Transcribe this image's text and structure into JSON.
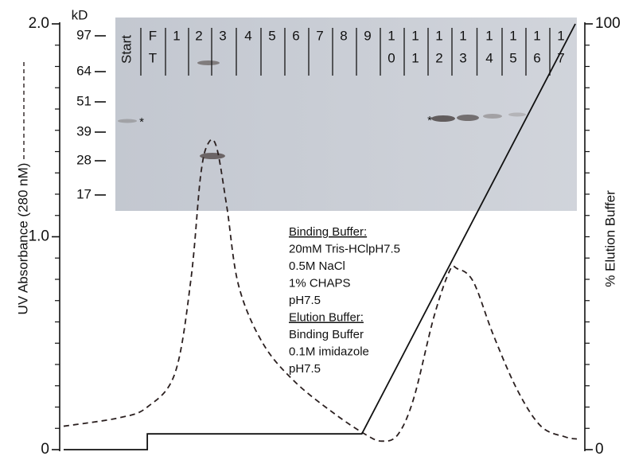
{
  "chart_data": {
    "type": "line",
    "ylabel": "UV Absorbance (280 nM)",
    "y2label": "% Elution Buffer",
    "xlim": [
      0,
      100
    ],
    "ylim": [
      0,
      2
    ],
    "yticks": [
      {
        "value": 0,
        "label": "0"
      },
      {
        "value": 1,
        "label": "1.0"
      },
      {
        "value": 2,
        "label": "2.0"
      }
    ],
    "yminorticks": [
      0.1,
      0.2,
      0.3,
      0.4,
      0.5,
      0.6,
      0.7,
      0.8,
      0.9,
      1.1,
      1.2,
      1.3,
      1.4,
      1.5,
      1.6,
      1.7,
      1.8,
      1.9
    ],
    "y2lim": [
      0,
      100
    ],
    "y2ticks": [
      0,
      100
    ],
    "y2minorticks": [
      5,
      10,
      15,
      20,
      25,
      30,
      35,
      40,
      45,
      50,
      55,
      60,
      65,
      70,
      75,
      80,
      85,
      90,
      95
    ],
    "series": [
      {
        "color": "#2a1f1f",
        "dashed": true,
        "x": [
          0,
          10.9,
          16.3,
          21.7,
          24.8,
          26.7,
          28.2,
          29.8,
          31.8,
          34.1,
          38.8,
          45,
          52.7,
          58.9,
          62,
          65.1,
          68.2,
          72.1,
          75.2,
          76.7,
          79.8,
          83.7,
          88.4,
          93,
          97.7,
          100
        ],
        "values": [
          0.11,
          0.15,
          0.2,
          0.36,
          0.8,
          1.29,
          1.44,
          1.42,
          1.14,
          0.77,
          0.5,
          0.32,
          0.17,
          0.07,
          0.04,
          0.07,
          0.24,
          0.62,
          0.84,
          0.85,
          0.79,
          0.54,
          0.28,
          0.11,
          0.06,
          0.05
        ]
      },
      {
        "color": "#111111",
        "dashed": false,
        "axis": "y2",
        "x": [
          0,
          16.3,
          16.3,
          58.1,
          99.7
        ],
        "values": [
          0,
          0,
          3.7,
          3.7,
          100
        ]
      }
    ],
    "gel": {
      "unit": "kD",
      "markers": [
        "97",
        "64",
        "51",
        "39",
        "28",
        "17"
      ],
      "lanes": [
        [
          "Start"
        ],
        [
          "F",
          "T"
        ],
        [
          "1"
        ],
        [
          "2"
        ],
        [
          "3"
        ],
        [
          "4"
        ],
        [
          "5"
        ],
        [
          "6"
        ],
        [
          "7"
        ],
        [
          "8"
        ],
        [
          "9"
        ],
        [
          "1",
          "0"
        ],
        [
          "1",
          "1"
        ],
        [
          "1",
          "2"
        ],
        [
          "1",
          "3"
        ],
        [
          "1",
          "4"
        ],
        [
          "1",
          "5"
        ],
        [
          "1",
          "6"
        ],
        [
          "1",
          "7"
        ]
      ],
      "stars": [
        "*",
        "*"
      ]
    },
    "buffers": {
      "binding_title": "Binding Buffer:",
      "binding": [
        "20mM Tris-HClpH7.5",
        "0.5M NaCl",
        "1% CHAPS",
        "pH7.5"
      ],
      "elution_title": "Elution Buffer:",
      "elution": [
        "Binding Buffer",
        "0.1M imidazole",
        "pH7.5"
      ]
    }
  }
}
